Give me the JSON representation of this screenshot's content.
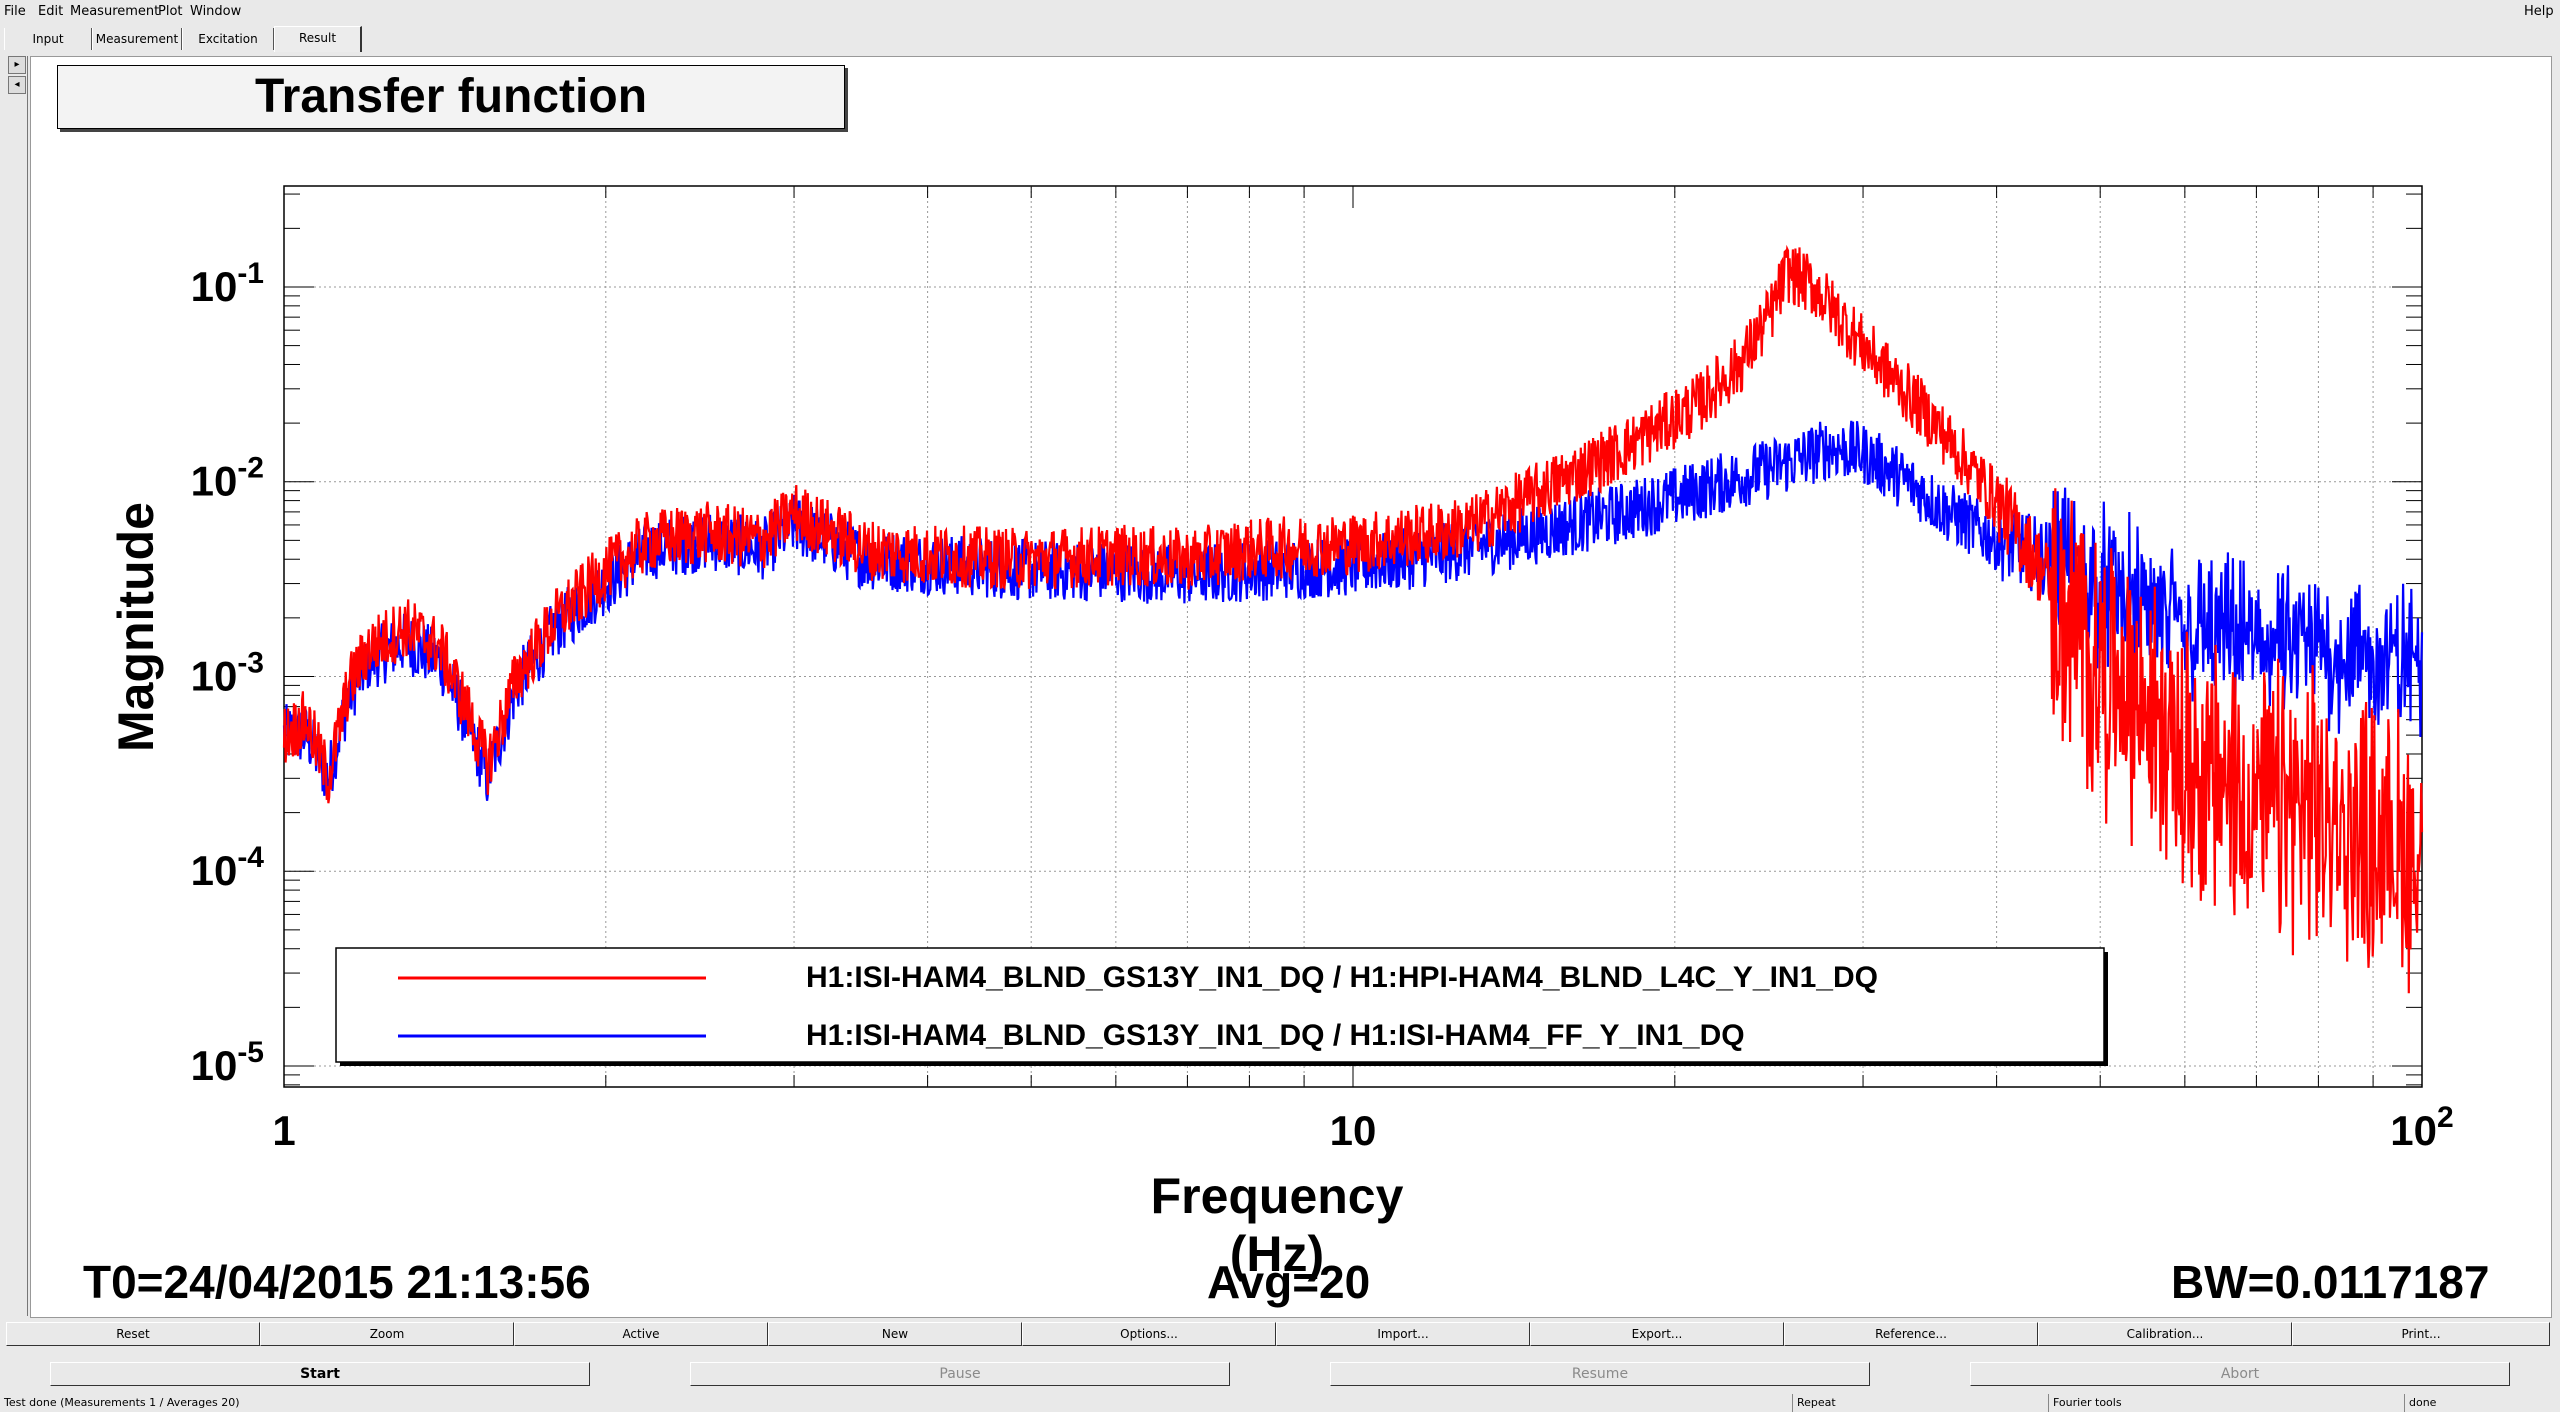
{
  "menu": {
    "file": "File",
    "edit": "Edit",
    "measurement": "Measurement",
    "plot": "Plot",
    "window": "Window",
    "help": "Help"
  },
  "tabs": [
    "Input",
    "Measurement",
    "Excitation",
    "Result"
  ],
  "active_tab": "Result",
  "side_arrows": [
    "right-arrow-icon",
    "left-arrow-icon"
  ],
  "plot": {
    "title": "Transfer function",
    "info_t0": "T0=24/04/2015 21:13:56",
    "info_avg": "Avg=20",
    "info_bw": "BW=0.0117187"
  },
  "chart_data": {
    "type": "line",
    "title": "Transfer function",
    "xlabel": "Frequency (Hz)",
    "ylabel": "Magnitude",
    "xscale": "log",
    "yscale": "log",
    "xlim": [
      1,
      100
    ],
    "ylim": [
      7.8e-06,
      0.33
    ],
    "x_ticks": [
      "1",
      "10",
      "10^2"
    ],
    "y_ticks": [
      "10^-1",
      "10^-2",
      "10^-3",
      "10^-4",
      "10^-5"
    ],
    "grid": true,
    "legend_position": "bottom-left",
    "series": [
      {
        "name": "H1:ISI-HAM4_BLND_GS13Y_IN1_DQ / H1:HPI-HAM4_BLND_L4C_Y_IN1_DQ",
        "color": "#ff0000",
        "x": [
          1.0,
          1.05,
          1.1,
          1.15,
          1.2,
          1.3,
          1.4,
          1.48,
          1.55,
          1.65,
          1.8,
          2.0,
          2.2,
          2.5,
          2.8,
          3.0,
          3.5,
          4.0,
          5.0,
          6.0,
          7.0,
          8.0,
          10.0,
          12.0,
          13.0,
          15.0,
          18.0,
          21.0,
          23.0,
          24.5,
          25.5,
          27.0,
          30.0,
          35.0,
          40.0,
          45.0,
          50.0,
          55.0,
          60.0,
          65.0,
          70.0,
          75.0,
          80.0,
          85.0,
          90.0,
          95.0,
          100.0
        ],
        "y": [
          0.0005,
          0.0006,
          0.0003,
          0.0009,
          0.0014,
          0.0018,
          0.0014,
          0.0007,
          0.00035,
          0.001,
          0.002,
          0.0035,
          0.005,
          0.0055,
          0.005,
          0.007,
          0.0045,
          0.0042,
          0.004,
          0.0042,
          0.004,
          0.0045,
          0.0048,
          0.0055,
          0.006,
          0.009,
          0.015,
          0.025,
          0.04,
          0.07,
          0.12,
          0.1,
          0.05,
          0.02,
          0.008,
          0.003,
          0.0015,
          0.0009,
          0.0005,
          0.00035,
          0.0003,
          0.00028,
          0.00025,
          0.00022,
          0.0002,
          0.00018,
          0.00016
        ]
      },
      {
        "name": "H1:ISI-HAM4_BLND_GS13Y_IN1_DQ / H1:ISI-HAM4_FF_Y_IN1_DQ",
        "color": "#0000ff",
        "x": [
          1.0,
          1.05,
          1.1,
          1.15,
          1.2,
          1.3,
          1.4,
          1.48,
          1.55,
          1.65,
          1.8,
          2.0,
          2.2,
          2.5,
          2.8,
          3.0,
          3.5,
          4.0,
          5.0,
          6.0,
          7.0,
          8.0,
          10.0,
          12.0,
          15.0,
          18.0,
          21.0,
          25.0,
          28.0,
          30.0,
          33.0,
          36.0,
          40.0,
          45.0,
          50.0,
          55.0,
          60.0,
          65.0,
          70.0,
          75.0,
          80.0,
          85.0,
          90.0,
          95.0,
          100.0
        ],
        "y": [
          0.0005,
          0.0005,
          0.0003,
          0.0008,
          0.0012,
          0.0015,
          0.0012,
          0.0006,
          0.0003,
          0.0009,
          0.0018,
          0.003,
          0.0045,
          0.005,
          0.0045,
          0.006,
          0.004,
          0.0038,
          0.0035,
          0.0035,
          0.0033,
          0.0035,
          0.0037,
          0.0042,
          0.0055,
          0.007,
          0.009,
          0.012,
          0.015,
          0.014,
          0.01,
          0.007,
          0.005,
          0.004,
          0.003,
          0.0022,
          0.0018,
          0.0016,
          0.0015,
          0.0014,
          0.0014,
          0.0013,
          0.0012,
          0.0012,
          0.0012
        ]
      }
    ]
  },
  "buttons": {
    "row1": [
      "Reset",
      "Zoom",
      "Active",
      "New",
      "Options...",
      "Import...",
      "Export...",
      "Reference...",
      "Calibration...",
      "Print..."
    ],
    "row2": [
      "Start",
      "Pause",
      "Resume",
      "Abort"
    ]
  },
  "status": {
    "message": "Test done (Measurements 1 / Averages 20)",
    "repeat": "Repeat",
    "tools": "Fourier tools",
    "state": "done"
  }
}
